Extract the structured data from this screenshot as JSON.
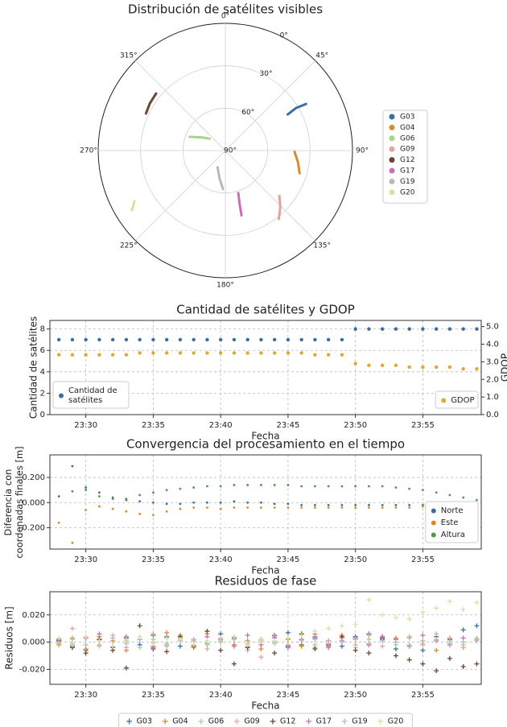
{
  "chart_data": [
    {
      "type": "polar",
      "title": "Distribución de satélites visibles",
      "rlim": [
        90,
        0
      ],
      "rticks": [
        {
          "value": 0,
          "label": "0°"
        },
        {
          "value": 30,
          "label": "30°"
        },
        {
          "value": 60,
          "label": "60°"
        },
        {
          "value": 90,
          "label": "90°"
        }
      ],
      "theta_ticks": [
        {
          "value": 0,
          "label": "0°"
        },
        {
          "value": 45,
          "label": "45°"
        },
        {
          "value": 90,
          "label": "90°"
        },
        {
          "value": 135,
          "label": "135°"
        },
        {
          "value": 180,
          "label": "180°"
        },
        {
          "value": 225,
          "label": "225°"
        },
        {
          "value": 270,
          "label": "270°"
        },
        {
          "value": 315,
          "label": "315°"
        }
      ],
      "legend": "right",
      "series": [
        {
          "name": "G03",
          "color": "#3a6ea5",
          "azimuth": [
            60,
            59,
            60
          ],
          "elevation": [
            39,
            31.5,
            24
          ]
        },
        {
          "name": "G04",
          "color": "#d98c2c",
          "azimuth": [
            91,
            99,
            107
          ],
          "elevation": [
            41,
            38,
            35
          ]
        },
        {
          "name": "G06",
          "color": "#a3d68a",
          "azimuth": [
            291,
            298,
            307
          ],
          "elevation": [
            63,
            70,
            76
          ]
        },
        {
          "name": "G09",
          "color": "#e3a3a3",
          "azimuth": [
            130,
            136,
            142
          ],
          "elevation": [
            40,
            34,
            28.5
          ]
        },
        {
          "name": "G12",
          "color": "#6b4530",
          "azimuth": [
            309.5,
            302,
            295
          ],
          "elevation": [
            26.5,
            27,
            28
          ]
        },
        {
          "name": "G17",
          "color": "#c46fb8",
          "azimuth": [
            163,
            165,
            166
          ],
          "elevation": [
            58.6,
            51,
            42.7
          ]
        },
        {
          "name": "G19",
          "color": "#b9b9b9",
          "azimuth": [
            205,
            192,
            183.5
          ],
          "elevation": [
            77,
            70,
            62.7
          ]
        },
        {
          "name": "G20",
          "color": "#d7e0a0",
          "azimuth": [
            241,
            239,
            237.5
          ],
          "elevation": [
            16.5,
            14,
            11.6
          ]
        }
      ]
    },
    {
      "type": "scatter",
      "title": "Cantidad de satélites y GDOP",
      "xlabel": "Fecha",
      "ylabel": "Cantidad de satélites",
      "y2label": "GDOP",
      "grid": true,
      "marker": "o",
      "xlim": [
        "23:27:20",
        "23:59:20"
      ],
      "xticks": [
        "23:30",
        "23:35",
        "23:40",
        "23:45",
        "23:50",
        "23:55"
      ],
      "ylim": [
        0,
        8.8
      ],
      "yticks": [
        0,
        2,
        4,
        6,
        8
      ],
      "y2lim": [
        0,
        5.35
      ],
      "y2ticks": [
        {
          "value": 0,
          "label": "0.0"
        },
        {
          "value": 1,
          "label": "1.0"
        },
        {
          "value": 2,
          "label": "2.0"
        },
        {
          "value": 3,
          "label": "3.0"
        },
        {
          "value": 4,
          "label": "4.0"
        },
        {
          "value": 5,
          "label": "5.0"
        }
      ],
      "legend": [
        "lower left",
        "lower right"
      ],
      "x": [
        "23:28",
        "23:29",
        "23:30",
        "23:31",
        "23:32",
        "23:33",
        "23:34",
        "23:35",
        "23:36",
        "23:37",
        "23:38",
        "23:39",
        "23:40",
        "23:41",
        "23:42",
        "23:43",
        "23:44",
        "23:45",
        "23:46",
        "23:47",
        "23:48",
        "23:49",
        "23:50",
        "23:51",
        "23:52",
        "23:53",
        "23:54",
        "23:55",
        "23:56",
        "23:57",
        "23:58",
        "23:59"
      ],
      "series": [
        {
          "name": "Cantidad de satélites",
          "color": "#3a6ea5",
          "values": [
            7,
            7,
            7,
            7,
            7,
            7,
            7,
            7,
            7,
            7,
            7,
            7,
            7,
            7,
            7,
            7,
            7,
            7,
            7,
            7,
            7,
            7,
            8,
            8,
            8,
            8,
            8,
            8,
            8,
            8,
            8,
            8
          ]
        },
        {
          "name": "GDOP",
          "color": "#e0a82e",
          "axis": "y2",
          "values": [
            3.4,
            3.4,
            3.4,
            3.4,
            3.4,
            3.4,
            3.5,
            3.5,
            3.5,
            3.5,
            3.5,
            3.5,
            3.5,
            3.5,
            3.5,
            3.5,
            3.5,
            3.5,
            3.5,
            3.4,
            3.4,
            3.4,
            2.9,
            2.8,
            2.8,
            2.8,
            2.7,
            2.7,
            2.7,
            2.7,
            2.6,
            2.6
          ]
        }
      ]
    },
    {
      "type": "scatter",
      "title": "Convergencia del procesamiento en el tiempo",
      "xlabel": "Fecha",
      "ylabel": "Diferencia con coordenadas finales [m]",
      "grid": true,
      "marker": "o",
      "xlim": [
        "23:27:20",
        "23:59:20"
      ],
      "xticks": [
        "23:30",
        "23:35",
        "23:40",
        "23:45",
        "23:50",
        "23:55"
      ],
      "ylim": [
        -0.37,
        0.38
      ],
      "yticks": [
        {
          "value": -0.2,
          "label": "-0.200"
        },
        {
          "value": 0,
          "label": "0.000"
        },
        {
          "value": 0.2,
          "label": "0.200"
        }
      ],
      "legend": "lower right",
      "x": [
        "23:28",
        "23:29",
        "23:30",
        "23:31",
        "23:32",
        "23:33",
        "23:34",
        "23:35",
        "23:36",
        "23:37",
        "23:38",
        "23:39",
        "23:40",
        "23:41",
        "23:42",
        "23:43",
        "23:44",
        "23:45",
        "23:46",
        "23:47",
        "23:48",
        "23:49",
        "23:50",
        "23:51",
        "23:52",
        "23:53",
        "23:54",
        "23:55",
        "23:56",
        "23:57",
        "23:58",
        "23:59"
      ],
      "series": [
        {
          "name": "Norte",
          "color": "#3a6ea5",
          "values": [
            0.05,
            0.29,
            0.12,
            0.08,
            0.04,
            0.02,
            0.01,
            0,
            -0.01,
            -0.01,
            0,
            0,
            0,
            0.01,
            0,
            0,
            -0.01,
            -0.01,
            -0.02,
            -0.02,
            -0.02,
            -0.02,
            -0.02,
            -0.02,
            -0.02,
            -0.02,
            -0.02,
            -0.02,
            -0.02,
            -0.02,
            -0.01,
            -0.01
          ]
        },
        {
          "name": "Este",
          "color": "#d98c2c",
          "values": [
            -0.16,
            -0.32,
            -0.06,
            -0.03,
            -0.05,
            -0.07,
            -0.09,
            -0.1,
            -0.07,
            -0.05,
            -0.04,
            -0.04,
            -0.05,
            -0.04,
            -0.04,
            -0.04,
            -0.04,
            -0.04,
            -0.04,
            -0.04,
            -0.04,
            -0.04,
            -0.04,
            -0.04,
            -0.04,
            -0.04,
            -0.04,
            -0.03,
            -0.03,
            -0.03,
            -0.02,
            -0.02
          ]
        },
        {
          "name": "Altura",
          "color": "#4a9a46",
          "values": [
            null,
            0.09,
            0.1,
            0.05,
            0.03,
            0.03,
            0.06,
            0.08,
            0.1,
            0.11,
            0.12,
            0.13,
            0.13,
            0.14,
            0.14,
            0.14,
            0.14,
            0.14,
            0.13,
            0.13,
            0.13,
            0.13,
            0.13,
            0.13,
            0.13,
            0.12,
            0.11,
            0.1,
            0.08,
            0.06,
            0.04,
            0.02
          ]
        }
      ]
    },
    {
      "type": "scatter",
      "title": "Residuos de fase",
      "xlabel": "Fecha",
      "ylabel": "Residuos [m]",
      "grid": true,
      "marker": "+",
      "xlim": [
        "23:27:20",
        "23:59:20"
      ],
      "xticks": [
        "23:30",
        "23:35",
        "23:40",
        "23:45",
        "23:50",
        "23:55"
      ],
      "ylim": [
        -0.031,
        0.037
      ],
      "yticks": [
        {
          "value": -0.02,
          "label": "-0.020"
        },
        {
          "value": 0,
          "label": "0.000"
        },
        {
          "value": 0.02,
          "label": "0.020"
        }
      ],
      "legend": "below",
      "x": [
        "23:28",
        "23:29",
        "23:30",
        "23:31",
        "23:32",
        "23:33",
        "23:34",
        "23:35",
        "23:36",
        "23:37",
        "23:38",
        "23:39",
        "23:40",
        "23:41",
        "23:42",
        "23:43",
        "23:44",
        "23:45",
        "23:46",
        "23:47",
        "23:48",
        "23:49",
        "23:50",
        "23:51",
        "23:52",
        "23:53",
        "23:54",
        "23:55",
        "23:56",
        "23:57",
        "23:58",
        "23:59"
      ],
      "series": [
        {
          "name": "G03",
          "color": "#3a6ea5",
          "values": [
            0.001,
            -0.003,
            -0.006,
            0.002,
            -0.004,
            0.003,
            -0.002,
            0.005,
            0.004,
            -0.003,
            0.002,
            -0.001,
            0.006,
            0.003,
            -0.004,
            0.002,
            0.005,
            0.007,
            -0.002,
            0.003,
            0.001,
            -0.003,
            0.004,
            0.006,
            0.002,
            -0.005,
            0.003,
            -0.006,
            0.004,
            0.002,
            0.009,
            0.012
          ]
        },
        {
          "name": "G04",
          "color": "#d98c2c",
          "values": [
            -0.002,
            0.003,
            -0.005,
            0.004,
            0.001,
            -0.006,
            0.002,
            -0.003,
            0.007,
            0.005,
            -0.004,
            0.006,
            0.003,
            -0.002,
            0.001,
            -0.005,
            0.004,
            0.002,
            -0.003,
            0.006,
            -0.004,
            0.005,
            0.002,
            -0.002,
            0.004,
            0.003,
            -0.003,
            0.001,
            -0.006,
            0.003,
            -0.004,
            0.002
          ]
        },
        {
          "name": "G06",
          "color": "#a3d68a",
          "values": [
            0.002,
            -0.001,
            0.004,
            -0.003,
            0.003,
            0.001,
            -0.004,
            0.002,
            -0.001,
            0.003,
            0.002,
            -0.002,
            0.001,
            0.004,
            -0.003,
            0.002,
            -0.001,
            0.003,
            0.002,
            -0.002,
            0.001,
            0.003,
            -0.004,
            0.002,
            0.001,
            -0.002,
            0.003,
            -0.001,
            0.002,
            0.001,
            -0.002,
            0.003
          ]
        },
        {
          "name": "G09",
          "color": "#e3a3a3",
          "values": [
            -0.001,
            0.01,
            0.003,
            -0.002,
            0.005,
            -0.004,
            0.002,
            0.006,
            -0.003,
            0.004,
            0.001,
            -0.005,
            0.003,
            0.002,
            -0.006,
            -0.011,
            0.004,
            -0.003,
            0.002,
            -0.004,
            0.001,
            0.003,
            -0.002,
            0.005,
            -0.003,
            0.002,
            0.004,
            -0.002,
            0.006,
            0.003,
            -0.004,
            0.002
          ]
        },
        {
          "name": "G12",
          "color": "#6b4530",
          "values": [
            0.001,
            -0.004,
            -0.008,
            0.002,
            -0.006,
            -0.019,
            0.012,
            -0.005,
            -0.007,
            0.004,
            -0.003,
            0.008,
            -0.006,
            -0.016,
            -0.004,
            0.002,
            -0.008,
            -0.003,
            0.006,
            -0.005,
            -0.002,
            0.004,
            -0.006,
            -0.008,
            0.003,
            -0.01,
            -0.013,
            -0.016,
            -0.021,
            -0.012,
            -0.018,
            -0.016
          ]
        },
        {
          "name": "G17",
          "color": "#c46fb8",
          "values": [
            0.002,
            -0.002,
            0.003,
            0.006,
            -0.003,
            0.004,
            0.002,
            -0.004,
            0.003,
            0.001,
            -0.002,
            0.004,
            0.002,
            -0.003,
            0.005,
            -0.002,
            0.003,
            -0.004,
            0.002,
            0.004,
            -0.003,
            0.001,
            0.003,
            -0.002,
            0.004,
            0.002,
            -0.003,
            0.005,
            0.001,
            -0.002,
            0.003,
            0.001
          ]
        },
        {
          "name": "G19",
          "color": "#b9b9b9",
          "values": [
            0,
            0.002,
            -0.002,
            0.001,
            0.003,
            -0.001,
            0.002,
            0,
            -0.002,
            0.001,
            0.002,
            -0.001,
            0,
            0.002,
            -0.001,
            0.001,
            0,
            -0.002,
            0.001,
            0.002,
            -0.001,
            0,
            0.002,
            -0.001,
            0.001,
            0,
            -0.002,
            0.001,
            0.002,
            -0.001,
            0,
            0.001
          ]
        },
        {
          "name": "G20",
          "color": "#d7e0a0",
          "values": [
            0.003,
            -0.002,
            0.004,
            0.001,
            -0.003,
            0.002,
            0.004,
            -0.001,
            0.003,
            0.002,
            -0.002,
            0.001,
            0.003,
            0.004,
            -0.002,
            0.002,
            0.001,
            0.003,
            0.005,
            0.008,
            0.01,
            0.012,
            0.013,
            0.031,
            0.02,
            0.018,
            0.017,
            0.022,
            0.025,
            0.03,
            0.024,
            0.029
          ]
        }
      ]
    }
  ]
}
